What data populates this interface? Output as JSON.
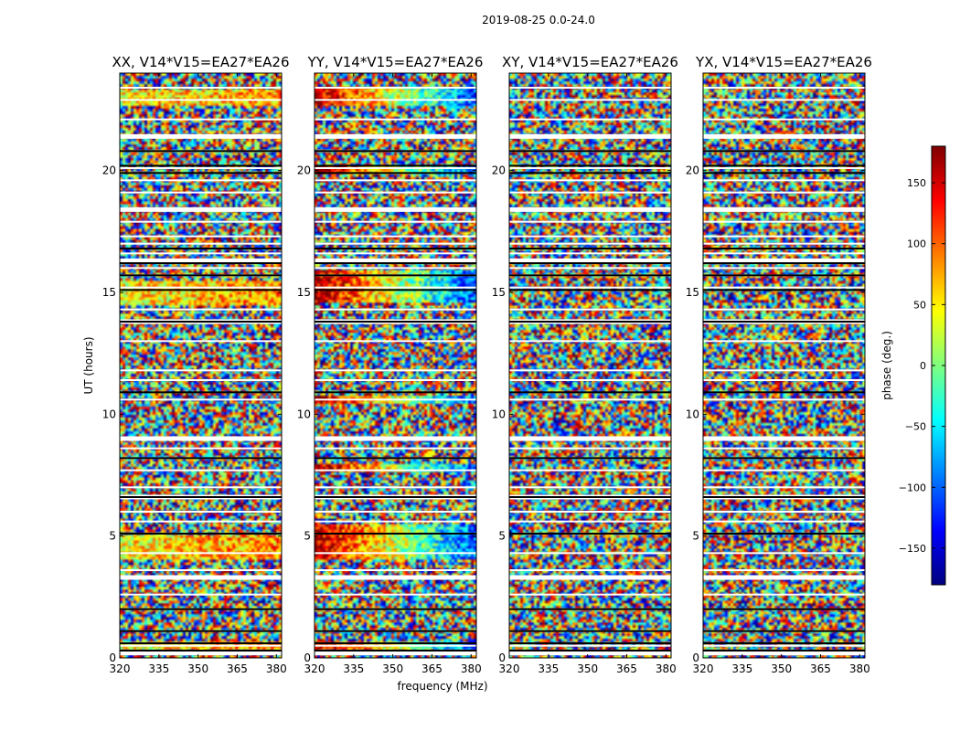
{
  "figure": {
    "suptitle": "2019-08-25 0.0-24.0"
  },
  "chart_data": [
    {
      "type": "heatmap",
      "title": "XX, V14*V15=EA27*EA26",
      "correlation": "XX",
      "xlabel": "",
      "ylabel": "UT (hours)",
      "xlim": [
        320,
        382
      ],
      "ylim": [
        0,
        24
      ],
      "xticks": [
        "320",
        "335",
        "350",
        "365",
        "380"
      ],
      "yticks": [
        "0",
        "5",
        "10",
        "15",
        "20"
      ],
      "value": "phase (deg.)",
      "coherent_bands_hours": [
        [
          0.3,
          0.7
        ],
        [
          4.0,
          5.0
        ],
        [
          14.5,
          15.5
        ],
        [
          22.6,
          23.3
        ]
      ]
    },
    {
      "type": "heatmap",
      "title": "YY, V14*V15=EA27*EA26",
      "correlation": "YY",
      "xlabel": "frequency (MHz)",
      "ylabel": "",
      "xlim": [
        320,
        382
      ],
      "ylim": [
        0,
        24
      ],
      "xticks": [
        "320",
        "335",
        "350",
        "365",
        "380"
      ],
      "yticks": [
        "0",
        "5",
        "10",
        "15",
        "20"
      ],
      "value": "phase (deg.)",
      "coherent_bands_hours": [
        [
          0.3,
          0.7
        ],
        [
          4.0,
          5.5
        ],
        [
          7.6,
          8.0
        ],
        [
          10.4,
          10.8
        ],
        [
          14.6,
          15.9
        ],
        [
          19.9,
          20.2
        ],
        [
          22.6,
          23.4
        ]
      ]
    },
    {
      "type": "heatmap",
      "title": "XY, V14*V15=EA27*EA26",
      "correlation": "XY",
      "xlabel": "",
      "ylabel": "",
      "xlim": [
        320,
        382
      ],
      "ylim": [
        0,
        24
      ],
      "xticks": [
        "320",
        "335",
        "350",
        "365",
        "380"
      ],
      "yticks": [
        "0",
        "5",
        "10",
        "15",
        "20"
      ],
      "value": "phase (deg.)",
      "coherent_bands_hours": []
    },
    {
      "type": "heatmap",
      "title": "YX, V14*V15=EA27*EA26",
      "correlation": "YX",
      "xlabel": "",
      "ylabel": "",
      "xlim": [
        320,
        382
      ],
      "ylim": [
        0,
        24
      ],
      "xticks": [
        "320",
        "335",
        "350",
        "365",
        "380"
      ],
      "yticks": [
        "0",
        "5",
        "10",
        "15",
        "20"
      ],
      "value": "phase (deg.)",
      "coherent_bands_hours": []
    }
  ],
  "colorbar": {
    "label": "phase (deg.)",
    "range": [
      -180,
      180
    ],
    "ticks": [
      {
        "value": 150,
        "label": "150"
      },
      {
        "value": 100,
        "label": "100"
      },
      {
        "value": 50,
        "label": "50"
      },
      {
        "value": 0,
        "label": "0"
      },
      {
        "value": -50,
        "label": "−50"
      },
      {
        "value": -100,
        "label": "−100"
      },
      {
        "value": -150,
        "label": "−150"
      }
    ],
    "colormap": "jet"
  },
  "flagged_hours": [
    0.2,
    0.5,
    1.1,
    2.0,
    2.6,
    3.3,
    3.6,
    4.3,
    5.6,
    6.0,
    6.6,
    7.0,
    7.7,
    8.2,
    8.6,
    9.0,
    10.6,
    11.4,
    11.8,
    13.0,
    13.8,
    14.3,
    15.2,
    15.7,
    16.0,
    16.3,
    16.6,
    17.0,
    17.3,
    17.9,
    18.4,
    19.1,
    19.6,
    20.1,
    20.8,
    21.4,
    22.1,
    22.9,
    23.4
  ],
  "black_lines_hours": [
    0.3,
    0.6,
    1.1,
    2.0,
    5.1,
    6.6,
    8.2,
    10.9,
    13.8,
    15.1,
    15.7,
    16.2,
    16.8,
    19.9,
    20.2,
    20.8
  ]
}
